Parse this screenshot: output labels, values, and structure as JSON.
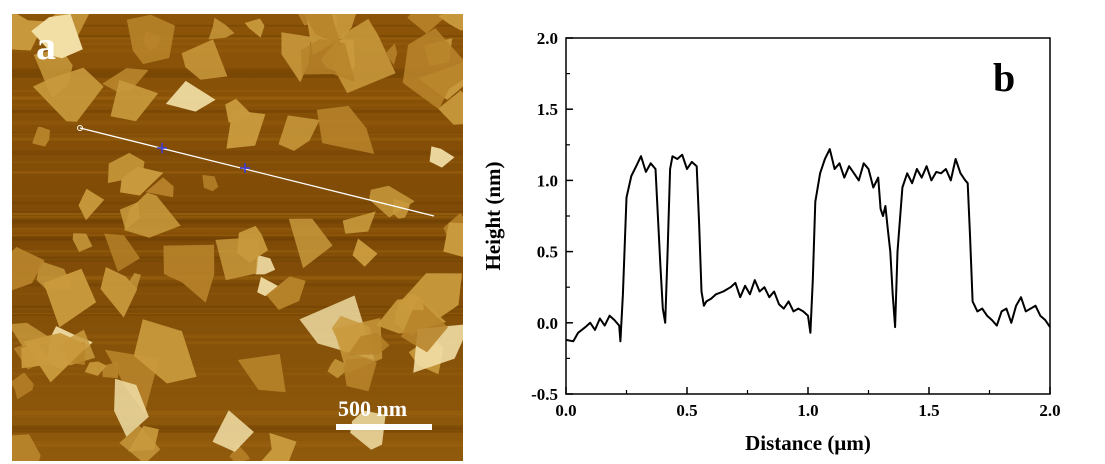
{
  "panels": {
    "left_label": "a",
    "right_label": "b"
  },
  "afm_image": {
    "scale_bar_label": "500 nm",
    "colors": {
      "background": "#8a5208",
      "flake": "#c99a3d",
      "bright": "#f2e0a8",
      "line": "#ffffff",
      "marker": "#2a2ad0"
    }
  },
  "chart_data": {
    "type": "line",
    "xlabel": "Distance (µm)",
    "ylabel": "Height (nm)",
    "xlim": [
      0.0,
      2.0
    ],
    "ylim": [
      -0.5,
      2.0
    ],
    "xticks": [
      "0.0",
      "0.5",
      "1.0",
      "1.5",
      "2.0"
    ],
    "yticks": [
      "-0.5",
      "0.0",
      "0.5",
      "1.0",
      "1.5",
      "2.0"
    ],
    "grid": false,
    "series": [
      {
        "color": "#000000",
        "x": [
          0.0,
          0.03,
          0.05,
          0.08,
          0.1,
          0.12,
          0.14,
          0.16,
          0.18,
          0.2,
          0.22,
          0.225,
          0.235,
          0.25,
          0.27,
          0.29,
          0.31,
          0.33,
          0.35,
          0.37,
          0.39,
          0.4,
          0.41,
          0.42,
          0.43,
          0.44,
          0.46,
          0.48,
          0.5,
          0.52,
          0.54,
          0.55,
          0.56,
          0.57,
          0.58,
          0.6,
          0.62,
          0.65,
          0.68,
          0.7,
          0.72,
          0.74,
          0.76,
          0.78,
          0.8,
          0.82,
          0.84,
          0.86,
          0.88,
          0.9,
          0.92,
          0.94,
          0.96,
          0.98,
          1.0,
          1.01,
          1.02,
          1.03,
          1.05,
          1.07,
          1.09,
          1.11,
          1.13,
          1.15,
          1.17,
          1.19,
          1.21,
          1.23,
          1.25,
          1.27,
          1.29,
          1.3,
          1.31,
          1.32,
          1.33,
          1.34,
          1.35,
          1.36,
          1.37,
          1.39,
          1.41,
          1.43,
          1.45,
          1.47,
          1.49,
          1.51,
          1.53,
          1.55,
          1.57,
          1.59,
          1.61,
          1.63,
          1.65,
          1.66,
          1.67,
          1.68,
          1.7,
          1.72,
          1.74,
          1.76,
          1.78,
          1.8,
          1.82,
          1.84,
          1.86,
          1.88,
          1.9,
          1.92,
          1.94,
          1.96,
          1.98,
          2.0
        ],
        "y": [
          -0.12,
          -0.13,
          -0.07,
          -0.03,
          0.0,
          -0.05,
          0.03,
          -0.02,
          0.05,
          0.02,
          -0.02,
          -0.13,
          0.2,
          0.88,
          1.03,
          1.1,
          1.17,
          1.06,
          1.12,
          1.08,
          0.4,
          0.1,
          0.0,
          0.5,
          1.08,
          1.17,
          1.15,
          1.18,
          1.08,
          1.13,
          1.1,
          0.7,
          0.22,
          0.12,
          0.15,
          0.17,
          0.2,
          0.22,
          0.25,
          0.28,
          0.18,
          0.26,
          0.2,
          0.3,
          0.22,
          0.25,
          0.18,
          0.22,
          0.13,
          0.1,
          0.15,
          0.08,
          0.1,
          0.08,
          0.05,
          -0.07,
          0.3,
          0.85,
          1.05,
          1.15,
          1.22,
          1.08,
          1.12,
          1.02,
          1.1,
          1.05,
          1.0,
          1.12,
          1.08,
          0.95,
          1.02,
          0.8,
          0.75,
          0.82,
          0.65,
          0.5,
          0.2,
          -0.03,
          0.5,
          0.95,
          1.05,
          0.98,
          1.08,
          1.02,
          1.1,
          1.0,
          1.06,
          1.05,
          1.08,
          1.0,
          1.15,
          1.05,
          1.0,
          0.98,
          0.6,
          0.15,
          0.08,
          0.1,
          0.05,
          0.02,
          -0.02,
          0.08,
          0.1,
          0.0,
          0.12,
          0.18,
          0.08,
          0.1,
          0.12,
          0.05,
          0.02,
          -0.03
        ]
      }
    ]
  }
}
